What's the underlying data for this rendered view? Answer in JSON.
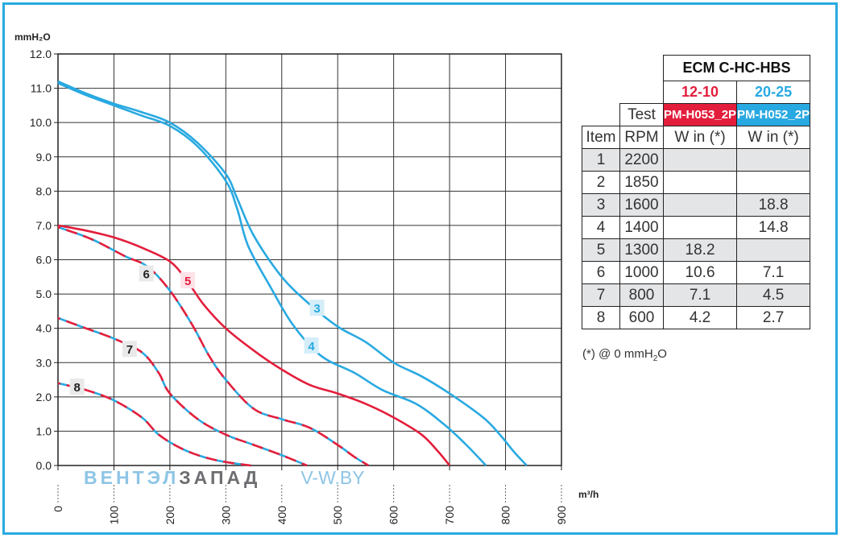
{
  "chart_data": {
    "type": "line",
    "ylabel": "mmH₂O",
    "xlabel": "m³/h",
    "xlim": [
      0,
      900
    ],
    "ylim": [
      0,
      12
    ],
    "x_ticks": [
      "0",
      "100",
      "200",
      "300",
      "400",
      "500",
      "600",
      "700",
      "800",
      "900"
    ],
    "y_ticks": [
      "0.0",
      "1.0",
      "2.0",
      "3.0",
      "4.0",
      "5.0",
      "6.0",
      "7.0",
      "8.0",
      "9.0",
      "10.0",
      "11.0",
      "12.0"
    ],
    "grid": true,
    "series": [
      {
        "label": "3",
        "color": "#29a9e1",
        "style": "solid",
        "label_at": [
          463,
          4.6
        ],
        "points": [
          [
            0,
            11.2
          ],
          [
            50,
            10.85
          ],
          [
            100,
            10.55
          ],
          [
            150,
            10.3
          ],
          [
            200,
            10.0
          ],
          [
            250,
            9.4
          ],
          [
            300,
            8.5
          ],
          [
            320,
            7.8
          ],
          [
            350,
            6.7
          ],
          [
            400,
            5.5
          ],
          [
            450,
            4.7
          ],
          [
            500,
            4.05
          ],
          [
            550,
            3.6
          ],
          [
            600,
            3.0
          ],
          [
            650,
            2.6
          ],
          [
            700,
            2.1
          ],
          [
            760,
            1.4
          ],
          [
            790,
            0.9
          ],
          [
            815,
            0.4
          ],
          [
            838,
            0.0
          ]
        ]
      },
      {
        "label": "4",
        "color": "#29a9e1",
        "style": "solid",
        "label_at": [
          453,
          3.5
        ],
        "points": [
          [
            0,
            11.15
          ],
          [
            50,
            10.8
          ],
          [
            100,
            10.5
          ],
          [
            150,
            10.2
          ],
          [
            200,
            9.9
          ],
          [
            250,
            9.3
          ],
          [
            300,
            8.3
          ],
          [
            320,
            7.5
          ],
          [
            340,
            6.4
          ],
          [
            380,
            5.2
          ],
          [
            420,
            4.1
          ],
          [
            470,
            3.2
          ],
          [
            530,
            2.7
          ],
          [
            580,
            2.2
          ],
          [
            640,
            1.8
          ],
          [
            690,
            1.2
          ],
          [
            730,
            0.6
          ],
          [
            765,
            0.0
          ]
        ]
      },
      {
        "label": "5",
        "color": "#e31e3c",
        "style": "solid",
        "label_at": [
          232,
          5.4
        ],
        "points": [
          [
            0,
            7.0
          ],
          [
            50,
            6.85
          ],
          [
            100,
            6.65
          ],
          [
            150,
            6.35
          ],
          [
            200,
            5.95
          ],
          [
            230,
            5.4
          ],
          [
            260,
            4.7
          ],
          [
            300,
            4.0
          ],
          [
            350,
            3.35
          ],
          [
            400,
            2.8
          ],
          [
            450,
            2.35
          ],
          [
            500,
            2.1
          ],
          [
            550,
            1.8
          ],
          [
            600,
            1.4
          ],
          [
            650,
            0.9
          ],
          [
            680,
            0.4
          ],
          [
            700,
            0.0
          ]
        ]
      },
      {
        "label": "6",
        "color": "#e31e3c",
        "style": "dashed",
        "alt_color": "#29a9e1",
        "label_at": [
          158,
          5.6
        ],
        "points": [
          [
            0,
            6.95
          ],
          [
            60,
            6.6
          ],
          [
            120,
            6.1
          ],
          [
            160,
            5.8
          ],
          [
            200,
            5.1
          ],
          [
            240,
            4.1
          ],
          [
            270,
            3.2
          ],
          [
            300,
            2.5
          ],
          [
            350,
            1.65
          ],
          [
            400,
            1.35
          ],
          [
            450,
            1.1
          ],
          [
            500,
            0.6
          ],
          [
            530,
            0.25
          ],
          [
            555,
            0.0
          ]
        ]
      },
      {
        "label": "7",
        "color": "#e31e3c",
        "style": "dashed",
        "alt_color": "#29a9e1",
        "label_at": [
          128,
          3.4
        ],
        "points": [
          [
            0,
            4.3
          ],
          [
            50,
            4.0
          ],
          [
            100,
            3.7
          ],
          [
            150,
            3.3
          ],
          [
            180,
            2.7
          ],
          [
            200,
            2.1
          ],
          [
            250,
            1.35
          ],
          [
            300,
            0.9
          ],
          [
            350,
            0.6
          ],
          [
            400,
            0.3
          ],
          [
            445,
            0.0
          ]
        ]
      },
      {
        "label": "8",
        "color": "#e31e3c",
        "style": "dashed",
        "alt_color": "#29a9e1",
        "label_at": [
          34,
          2.3
        ],
        "points": [
          [
            0,
            2.4
          ],
          [
            50,
            2.2
          ],
          [
            100,
            1.9
          ],
          [
            150,
            1.4
          ],
          [
            180,
            0.9
          ],
          [
            220,
            0.5
          ],
          [
            260,
            0.25
          ],
          [
            300,
            0.1
          ],
          [
            345,
            0.0
          ]
        ]
      }
    ]
  },
  "table": {
    "brand": "ECM C-HC-HBS",
    "size_red": "12-10",
    "size_blue": "20-25",
    "test_label": "Test",
    "model_red": "PM-H053_2P",
    "model_blue": "PM-H052_2P",
    "headers": [
      "Item",
      "RPM",
      "W in (*)",
      "W in (*)"
    ],
    "rows": [
      {
        "item": "1",
        "rpm": "2200",
        "red": "",
        "blue": ""
      },
      {
        "item": "2",
        "rpm": "1850",
        "red": "",
        "blue": ""
      },
      {
        "item": "3",
        "rpm": "1600",
        "red": "",
        "blue": "18.8"
      },
      {
        "item": "4",
        "rpm": "1400",
        "red": "",
        "blue": "14.8"
      },
      {
        "item": "5",
        "rpm": "1300",
        "red": "18.2",
        "blue": ""
      },
      {
        "item": "6",
        "rpm": "1000",
        "red": "10.6",
        "blue": "7.1"
      },
      {
        "item": "7",
        "rpm": "800",
        "red": "7.1",
        "blue": "4.5"
      },
      {
        "item": "8",
        "rpm": "600",
        "red": "4.2",
        "blue": "2.7"
      }
    ]
  },
  "footnote": {
    "prefix": "(*) @ 0 mmH",
    "sub": "2",
    "suffix": "O"
  },
  "watermark": {
    "part1": "ВЕНТЭЛ",
    "part2": "ЗАПАД",
    "part3": "V-W.BY"
  },
  "colors": {
    "frame": "#29a9e1",
    "red": "#e31e3c",
    "blue": "#29a9e1",
    "row_shade": "#e4e5e7"
  }
}
